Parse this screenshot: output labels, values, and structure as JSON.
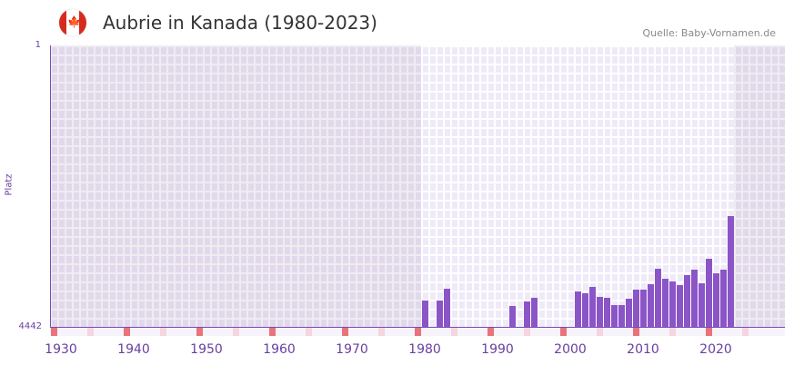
{
  "header": {
    "title": "Aubrie in Kanada (1980-2023)",
    "source": "Quelle: Baby-Vornamen.de",
    "flag_icon": "canada-flag-icon"
  },
  "chart_data": {
    "type": "bar",
    "title": "Aubrie in Kanada (1980-2023)",
    "xlabel": "",
    "ylabel": "Platz",
    "ylim": [
      4442,
      1
    ],
    "y_ticks": [
      "1",
      "4442"
    ],
    "x_ticks": [
      "1930",
      "1940",
      "1950",
      "1960",
      "1970",
      "1980",
      "1990",
      "2000",
      "2010",
      "2020"
    ],
    "x_range": [
      1929,
      2029
    ],
    "years": [
      1980,
      1982,
      1983,
      1992,
      1994,
      1995,
      2001,
      2002,
      2003,
      2004,
      2005,
      2006,
      2007,
      2008,
      2009,
      2010,
      2011,
      2012,
      2013,
      2014,
      2015,
      2016,
      2017,
      2018,
      2019,
      2020,
      2021,
      2022
    ],
    "values": [
      4027,
      4027,
      3840,
      4113,
      4041,
      3984,
      3883,
      3912,
      3812,
      3969,
      3984,
      4098,
      4098,
      3998,
      3855,
      3855,
      3769,
      3525,
      3683,
      3726,
      3783,
      3625,
      3539,
      3754,
      3368,
      3597,
      3539,
      2694
    ],
    "colors": {
      "bar": "#8b55c8",
      "axis": "#7a4bb5"
    }
  }
}
